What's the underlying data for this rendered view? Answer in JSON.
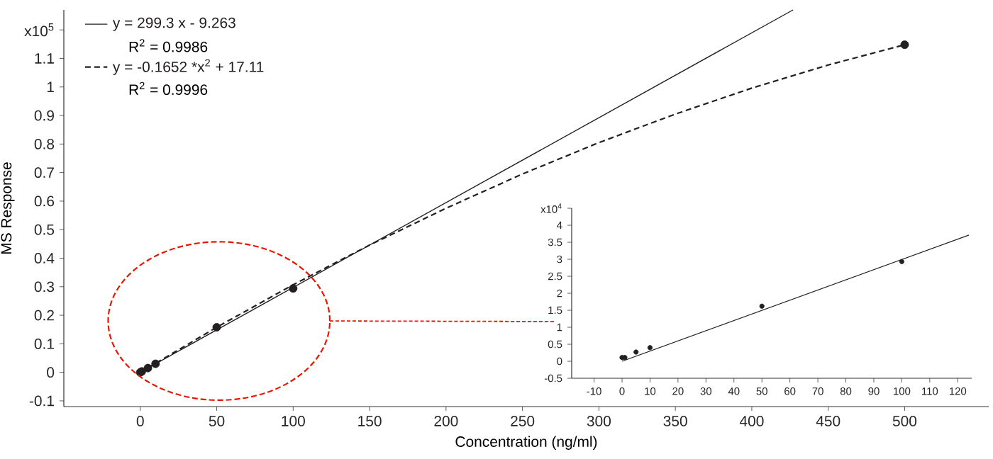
{
  "chart_data": [
    {
      "type": "line",
      "xlabel": "Concentration (ng/ml)",
      "ylabel": "MS Response",
      "xlim": [
        -50,
        555
      ],
      "ylim": [
        -0.12,
        1.27
      ],
      "xticks": [
        0,
        50,
        100,
        150,
        200,
        250,
        300,
        350,
        400,
        450,
        500
      ],
      "yticks": [
        -0.1,
        0,
        0.1,
        0.2,
        0.3,
        0.4,
        0.5,
        0.6,
        0.7,
        0.8,
        0.9,
        1,
        1.1,
        {
          "value": 1.2,
          "label": "x10$^{5}$"
        }
      ],
      "legend": "top left",
      "annotations": [
        "R$^{2}$ = 0.9986",
        "R$^{2}$ = 0.9996"
      ],
      "series": [
        {
          "name": "y = 299.3 x - 9.263",
          "color": "#231f20",
          "line_style": "solid",
          "marker": "none",
          "x": [
            0,
            427
          ],
          "values": [
            0,
            1.27
          ]
        },
        {
          "name": "y = -0.1652 *x$^{2}$ + 17.11",
          "color": "#231f20",
          "line_style": "dashed",
          "marker": "none",
          "x": [
            0,
            50,
            100,
            150,
            200,
            250,
            300,
            350,
            400,
            450,
            500
          ],
          "values": [
            0,
            0.158,
            0.307,
            0.446,
            0.575,
            0.695,
            0.805,
            0.905,
            0.996,
            1.077,
            1.148
          ]
        },
        {
          "type": "scatter",
          "color": "#231f20",
          "marker": "circle",
          "x": [
            0,
            1,
            5,
            10,
            50,
            100
          ],
          "values": [
            0,
            0.003,
            0.015,
            0.03,
            0.158,
            0.294
          ]
        },
        {
          "type": "scatter",
          "color": "#231f20",
          "marker": "circle",
          "x": [
            500
          ],
          "values": [
            1.148
          ]
        }
      ]
    },
    {
      "type": "line",
      "xlim": [
        -18,
        125
      ],
      "ylim": [
        -0.5,
        4.5
      ],
      "xticks": [
        -10,
        0,
        10,
        20,
        30,
        40,
        50,
        60,
        70,
        80,
        90,
        100,
        110,
        120
      ],
      "yticks": [
        -0.5,
        0,
        0.5,
        1,
        1.5,
        2,
        2.5,
        3,
        3.5,
        4,
        {
          "value": 4.5,
          "label": "x10$^{4}$"
        }
      ],
      "series": [
        {
          "color": "#231f20",
          "line_style": "solid",
          "marker": "none",
          "x": [
            0,
            124
          ],
          "values": [
            0,
            3.71
          ]
        },
        {
          "type": "scatter",
          "color": "#231f20",
          "marker": "circle",
          "x": [
            0,
            1,
            5,
            10,
            50,
            100
          ],
          "values": [
            0.11,
            0.11,
            0.27,
            0.4,
            1.62,
            2.93
          ]
        }
      ]
    }
  ]
}
